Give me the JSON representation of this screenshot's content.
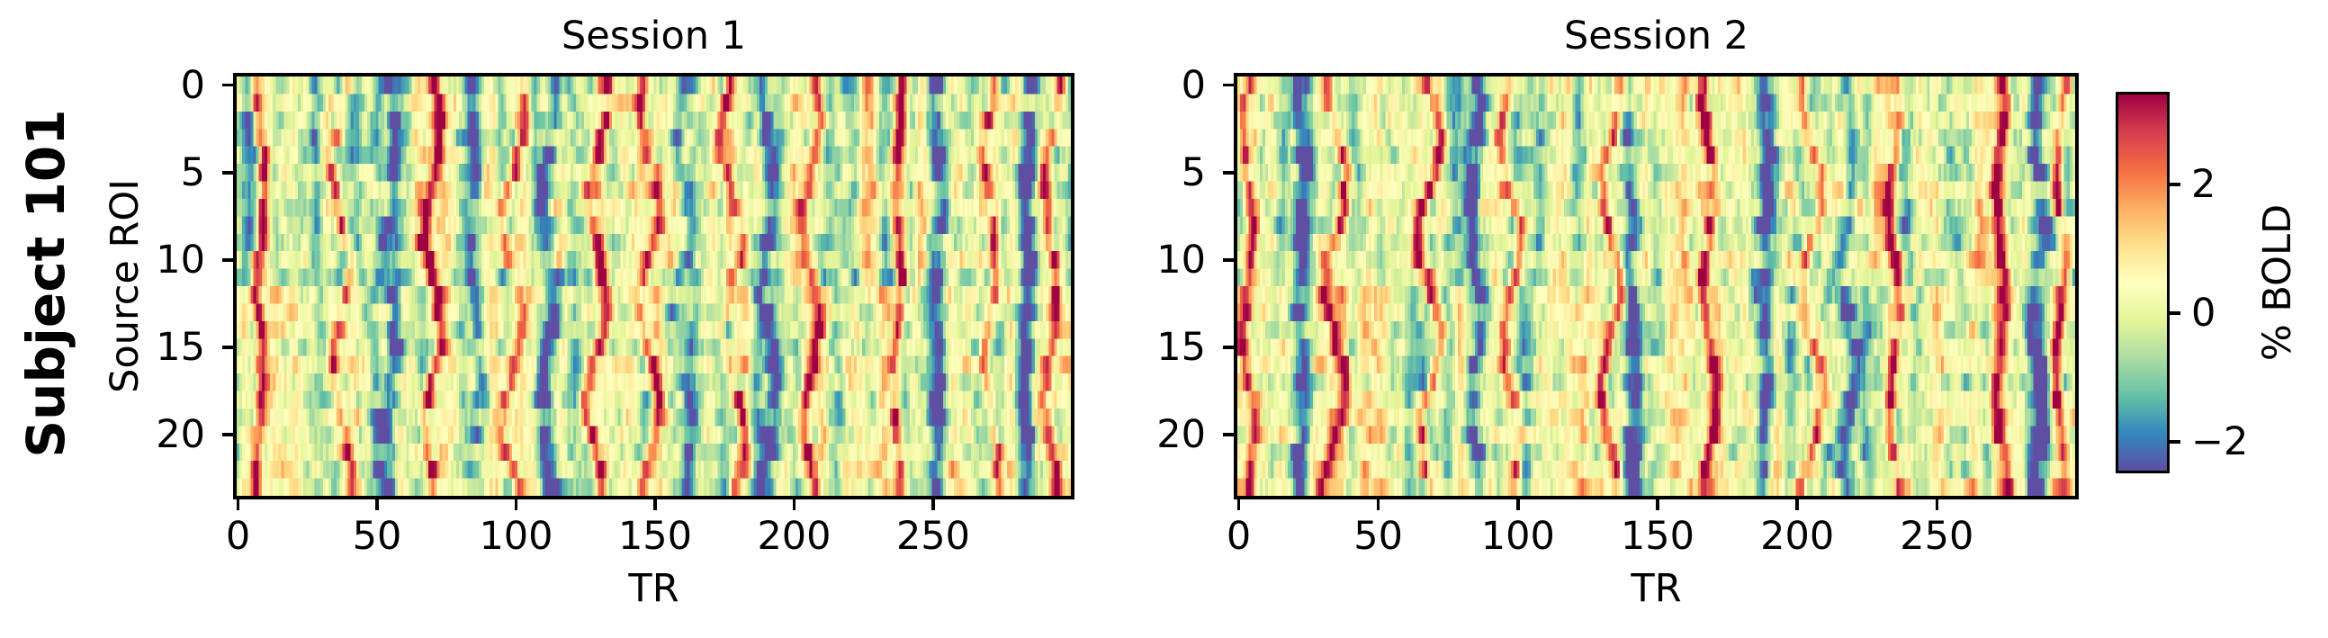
{
  "figure": {
    "row_label": "Subject 101",
    "background": "#ffffff",
    "text_color": "#000000"
  },
  "panels": [
    {
      "title": "Session 1",
      "xlabel": "TR",
      "ylabel": "Source ROI",
      "xticks": [
        0,
        50,
        100,
        150,
        200,
        250
      ],
      "yticks": [
        0,
        5,
        10,
        15,
        20
      ]
    },
    {
      "title": "Session 2",
      "xlabel": "TR",
      "ylabel": "",
      "xticks": [
        0,
        50,
        100,
        150,
        200,
        250
      ],
      "yticks": [
        0,
        5,
        10,
        15,
        20
      ]
    }
  ],
  "colorbar": {
    "label": "% BOLD",
    "ticks": [
      2,
      0,
      -2
    ],
    "vmin": -2.45,
    "vmax": 3.4,
    "colormap_name": "Spectral_r",
    "colormap_stops": [
      "#5e4fa2",
      "#3288bd",
      "#66c2a5",
      "#abdda4",
      "#e6f598",
      "#ffffbf",
      "#fee08b",
      "#fdae61",
      "#f46d43",
      "#d53e4f",
      "#9e0142"
    ]
  },
  "chart_data": [
    {
      "type": "heatmap",
      "title": "Session 1",
      "xlabel": "TR",
      "ylabel": "Source ROI",
      "value_label": "% BOLD",
      "x_range": [
        0,
        300
      ],
      "n_rows": 24,
      "n_cols": 300,
      "vmin": -2.45,
      "vmax": 3.4,
      "colormap": "Spectral_r",
      "seed": 13,
      "positive_event_trs": [
        8,
        37,
        70,
        99,
        130,
        148,
        177,
        206,
        237,
        270,
        293
      ],
      "negative_event_trs": [
        55,
        85,
        112,
        160,
        190,
        252,
        285
      ]
    },
    {
      "type": "heatmap",
      "title": "Session 2",
      "xlabel": "TR",
      "ylabel": "",
      "value_label": "% BOLD",
      "x_range": [
        0,
        300
      ],
      "n_rows": 24,
      "n_cols": 300,
      "vmin": -2.45,
      "vmax": 3.4,
      "colormap": "Spectral_r",
      "seed": 77,
      "positive_event_trs": [
        3,
        35,
        68,
        97,
        134,
        168,
        205,
        235,
        273,
        295
      ],
      "negative_event_trs": [
        22,
        85,
        140,
        188,
        218,
        287
      ]
    }
  ]
}
